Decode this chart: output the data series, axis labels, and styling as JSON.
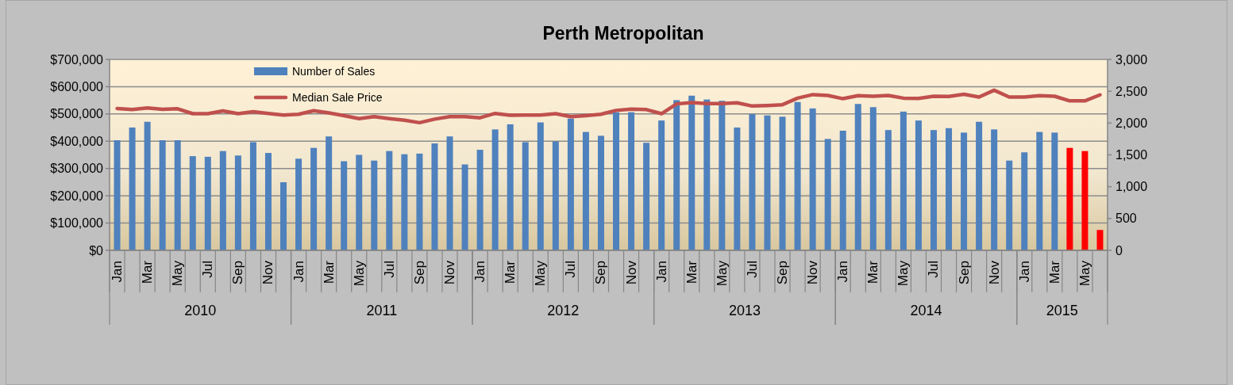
{
  "chart_data": {
    "type": "bar",
    "title": "Perth Metropolitan",
    "categories": [
      "Jan",
      null,
      "Mar",
      null,
      "May",
      null,
      "Jul",
      null,
      "Sep",
      null,
      "Nov",
      null,
      "Jan",
      null,
      "Mar",
      null,
      "May",
      null,
      "Jul",
      null,
      "Sep",
      null,
      "Nov",
      null,
      "Jan",
      null,
      "Mar",
      null,
      "May",
      null,
      "Jul",
      null,
      "Sep",
      null,
      "Nov",
      null,
      "Jan",
      null,
      "Mar",
      null,
      "May",
      null,
      "Jul",
      null,
      "Sep",
      null,
      "Nov",
      null,
      "Jan",
      null,
      "Mar",
      null,
      "May",
      null,
      "Jul",
      null,
      "Sep",
      null,
      "Nov",
      null,
      "Jan",
      null,
      "Mar",
      null,
      "May",
      null
    ],
    "annotations": [
      "2010",
      "2011",
      "2012",
      "2013",
      "2014",
      "2015"
    ],
    "series": [
      {
        "name": "Number of Sales",
        "axis": "y2",
        "color": "#4f81bd",
        "colors": [
          "#4f81bd",
          "#4f81bd",
          "#4f81bd",
          "#4f81bd",
          "#4f81bd",
          "#4f81bd",
          "#4f81bd",
          "#4f81bd",
          "#4f81bd",
          "#4f81bd",
          "#4f81bd",
          "#4f81bd",
          "#4f81bd",
          "#4f81bd",
          "#4f81bd",
          "#4f81bd",
          "#4f81bd",
          "#4f81bd",
          "#4f81bd",
          "#4f81bd",
          "#4f81bd",
          "#4f81bd",
          "#4f81bd",
          "#4f81bd",
          "#4f81bd",
          "#4f81bd",
          "#4f81bd",
          "#4f81bd",
          "#4f81bd",
          "#4f81bd",
          "#4f81bd",
          "#4f81bd",
          "#4f81bd",
          "#4f81bd",
          "#4f81bd",
          "#4f81bd",
          "#4f81bd",
          "#4f81bd",
          "#4f81bd",
          "#4f81bd",
          "#4f81bd",
          "#4f81bd",
          "#4f81bd",
          "#4f81bd",
          "#4f81bd",
          "#4f81bd",
          "#4f81bd",
          "#4f81bd",
          "#4f81bd",
          "#4f81bd",
          "#4f81bd",
          "#4f81bd",
          "#4f81bd",
          "#4f81bd",
          "#4f81bd",
          "#4f81bd",
          "#4f81bd",
          "#4f81bd",
          "#4f81bd",
          "#4f81bd",
          "#4f81bd",
          "#4f81bd",
          "#4f81bd",
          "#ff0000",
          "#ff0000",
          "#ff0000"
        ],
        "values": [
          1730,
          1930,
          2020,
          1730,
          1730,
          1480,
          1470,
          1560,
          1490,
          1700,
          1530,
          1070,
          1440,
          1610,
          1790,
          1400,
          1500,
          1410,
          1560,
          1510,
          1520,
          1680,
          1790,
          1350,
          1580,
          1900,
          1980,
          1700,
          2010,
          1710,
          2070,
          1860,
          1800,
          2170,
          2170,
          1690,
          2040,
          2360,
          2430,
          2370,
          2350,
          1930,
          2140,
          2120,
          2100,
          2330,
          2230,
          1750,
          1880,
          2300,
          2250,
          1890,
          2180,
          2040,
          1890,
          1920,
          1850,
          2020,
          1900,
          1410,
          1540,
          1860,
          1850,
          1610,
          1560,
          320
        ]
      },
      {
        "name": "Median Sale Price",
        "type": "line",
        "color": "#c0504d",
        "values": [
          520000,
          516000,
          522000,
          517000,
          519000,
          501000,
          501000,
          511000,
          501000,
          508000,
          502000,
          496000,
          499000,
          512000,
          504000,
          494000,
          483000,
          490000,
          483000,
          477000,
          468000,
          481000,
          490000,
          490000,
          486000,
          502000,
          495000,
          496000,
          496000,
          501000,
          490000,
          494000,
          499000,
          513000,
          518000,
          516000,
          501000,
          537000,
          542000,
          538000,
          538000,
          541000,
          529000,
          531000,
          534000,
          558000,
          571000,
          568000,
          556000,
          567000,
          565000,
          568000,
          558000,
          557000,
          565000,
          564000,
          572000,
          562000,
          587000,
          562000,
          562000,
          567000,
          565000,
          548000,
          548000,
          570000
        ]
      }
    ],
    "ylim": [
      0,
      700000
    ],
    "yticks": [
      {
        "value": 0,
        "label": "$0"
      },
      {
        "value": 100000,
        "label": "$100,000"
      },
      {
        "value": 200000,
        "label": "$200,000"
      },
      {
        "value": 300000,
        "label": "$300,000"
      },
      {
        "value": 400000,
        "label": "$400,000"
      },
      {
        "value": 500000,
        "label": "$500,000"
      },
      {
        "value": 600000,
        "label": "$600,000"
      },
      {
        "value": 700000,
        "label": "$700,000"
      }
    ],
    "y2lim": [
      0,
      3000
    ],
    "y2ticks": [
      0,
      500,
      {
        "value": 1000,
        "label": "1,000"
      },
      {
        "value": 1500,
        "label": "1,500"
      },
      {
        "value": 2000,
        "label": "2,000"
      },
      {
        "value": 2500,
        "label": "2,500"
      },
      {
        "value": 3000,
        "label": "3,000"
      }
    ],
    "grid": "y",
    "legend": "top left"
  }
}
